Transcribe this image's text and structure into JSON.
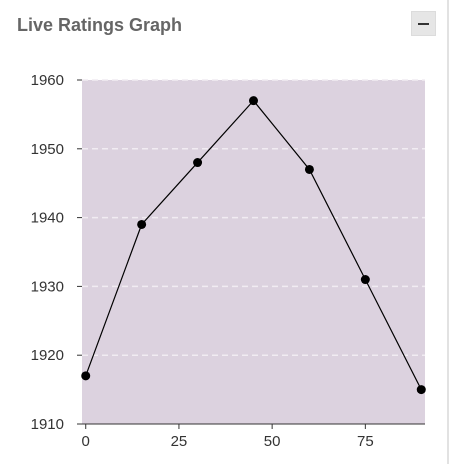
{
  "panel": {
    "title": "Live Ratings Graph",
    "collapse_icon": "minus-icon"
  },
  "colors": {
    "plot_background": "#dcd2df",
    "gridline": "#f1ecf2",
    "line": "#000000",
    "point": "#000000"
  },
  "chart_data": {
    "type": "line",
    "title": "",
    "xlabel": "",
    "ylabel": "",
    "x": [
      0,
      15,
      30,
      45,
      60,
      75,
      90
    ],
    "series": [
      {
        "values": [
          1917,
          1939,
          1948,
          1957,
          1947,
          1931,
          1915
        ]
      }
    ],
    "xlim": [
      -1,
      91
    ],
    "ylim": [
      1910,
      1960
    ],
    "xticks": [
      0,
      25,
      50,
      75
    ],
    "yticks": [
      1910,
      1920,
      1930,
      1940,
      1950,
      1960
    ],
    "xtick_labels": [
      "0",
      "25",
      "50",
      "75"
    ],
    "ytick_labels": [
      "1910",
      "1920",
      "1930",
      "1940",
      "1950",
      "1960"
    ],
    "grid": "horizontal-dashed",
    "legend": "none"
  }
}
